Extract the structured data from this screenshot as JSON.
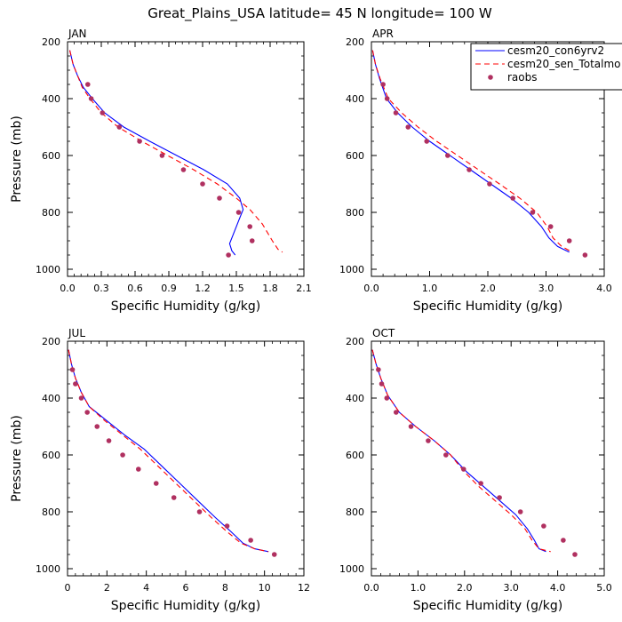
{
  "title": "Great_Plains_USA  latitude= 45 N longitude= 100 W",
  "chart_data": [
    {
      "type": "line",
      "panel": "JAN",
      "xlabel": "Specific Humidity (g/kg)",
      "ylabel": "Pressure (mb)",
      "xlim": [
        0,
        2.1
      ],
      "xticks": [
        "0.0",
        "0.3",
        "0.6",
        "0.9",
        "1.2",
        "1.5",
        "1.8",
        "2.1"
      ],
      "ylim": [
        1025,
        200
      ],
      "yticks": [
        "200",
        "400",
        "600",
        "800",
        "1000"
      ],
      "series": [
        {
          "name": "cesm20_con6yrv2",
          "kind": "line",
          "color": "#0000ff",
          "dash": "solid",
          "points": [
            [
              0.02,
              230
            ],
            [
              0.05,
              280
            ],
            [
              0.09,
              320
            ],
            [
              0.14,
              360
            ],
            [
              0.22,
              400
            ],
            [
              0.33,
              450
            ],
            [
              0.5,
              500
            ],
            [
              0.73,
              550
            ],
            [
              0.97,
              600
            ],
            [
              1.21,
              650
            ],
            [
              1.42,
              700
            ],
            [
              1.53,
              750
            ],
            [
              1.56,
              790
            ],
            [
              1.52,
              830
            ],
            [
              1.47,
              880
            ],
            [
              1.44,
              910
            ],
            [
              1.46,
              935
            ],
            [
              1.49,
              950
            ]
          ]
        },
        {
          "name": "cesm20_sen_Totalmo",
          "kind": "line",
          "color": "#ff0000",
          "dash": "6,4",
          "points": [
            [
              0.02,
              230
            ],
            [
              0.05,
              280
            ],
            [
              0.09,
              320
            ],
            [
              0.13,
              360
            ],
            [
              0.2,
              400
            ],
            [
              0.3,
              450
            ],
            [
              0.45,
              500
            ],
            [
              0.66,
              550
            ],
            [
              0.89,
              600
            ],
            [
              1.12,
              650
            ],
            [
              1.33,
              700
            ],
            [
              1.5,
              750
            ],
            [
              1.62,
              790
            ],
            [
              1.73,
              840
            ],
            [
              1.82,
              900
            ],
            [
              1.87,
              930
            ],
            [
              1.91,
              940
            ]
          ]
        },
        {
          "name": "raobs",
          "kind": "points",
          "color": "#b03060",
          "points": [
            [
              0.18,
              350
            ],
            [
              0.21,
              400
            ],
            [
              0.31,
              450
            ],
            [
              0.46,
              500
            ],
            [
              0.64,
              550
            ],
            [
              0.84,
              600
            ],
            [
              1.03,
              650
            ],
            [
              1.2,
              700
            ],
            [
              1.35,
              750
            ],
            [
              1.52,
              800
            ],
            [
              1.62,
              850
            ],
            [
              1.64,
              900
            ],
            [
              1.43,
              950
            ]
          ]
        }
      ]
    },
    {
      "type": "line",
      "panel": "APR",
      "xlabel": "Specific Humidity (g/kg)",
      "ylabel": "",
      "xlim": [
        0,
        4.0
      ],
      "xticks": [
        "0.0",
        "1.0",
        "2.0",
        "3.0",
        "4.0"
      ],
      "ylim": [
        1025,
        200
      ],
      "yticks": [
        "200",
        "400",
        "600",
        "800",
        "1000"
      ],
      "series": [
        {
          "name": "cesm20_con6yrv2",
          "kind": "line",
          "color": "#0000ff",
          "dash": "solid",
          "points": [
            [
              0.02,
              230
            ],
            [
              0.07,
              280
            ],
            [
              0.14,
              330
            ],
            [
              0.26,
              400
            ],
            [
              0.45,
              450
            ],
            [
              0.7,
              500
            ],
            [
              1.0,
              550
            ],
            [
              1.35,
              600
            ],
            [
              1.7,
              650
            ],
            [
              2.05,
              700
            ],
            [
              2.4,
              750
            ],
            [
              2.7,
              800
            ],
            [
              2.92,
              850
            ],
            [
              3.05,
              890
            ],
            [
              3.2,
              920
            ],
            [
              3.4,
              940
            ]
          ]
        },
        {
          "name": "cesm20_sen_Totalmo",
          "kind": "line",
          "color": "#ff0000",
          "dash": "6,4",
          "points": [
            [
              0.02,
              230
            ],
            [
              0.07,
              280
            ],
            [
              0.15,
              330
            ],
            [
              0.29,
              400
            ],
            [
              0.52,
              450
            ],
            [
              0.8,
              500
            ],
            [
              1.12,
              550
            ],
            [
              1.48,
              600
            ],
            [
              1.84,
              650
            ],
            [
              2.2,
              700
            ],
            [
              2.55,
              750
            ],
            [
              2.84,
              800
            ],
            [
              3.02,
              850
            ],
            [
              3.12,
              890
            ],
            [
              3.27,
              920
            ],
            [
              3.45,
              940
            ]
          ]
        },
        {
          "name": "raobs",
          "kind": "points",
          "color": "#b03060",
          "points": [
            [
              0.2,
              350
            ],
            [
              0.27,
              400
            ],
            [
              0.42,
              450
            ],
            [
              0.63,
              500
            ],
            [
              0.95,
              550
            ],
            [
              1.31,
              600
            ],
            [
              1.68,
              650
            ],
            [
              2.03,
              700
            ],
            [
              2.43,
              750
            ],
            [
              2.77,
              800
            ],
            [
              3.08,
              850
            ],
            [
              3.4,
              900
            ],
            [
              3.67,
              950
            ]
          ]
        }
      ]
    },
    {
      "type": "line",
      "panel": "JUL",
      "xlabel": "Specific Humidity (g/kg)",
      "ylabel": "Pressure (mb)",
      "xlim": [
        0,
        12
      ],
      "xticks": [
        "0",
        "2",
        "4",
        "6",
        "8",
        "10",
        "12"
      ],
      "ylim": [
        1025,
        200
      ],
      "yticks": [
        "200",
        "400",
        "600",
        "800",
        "1000"
      ],
      "series": [
        {
          "name": "cesm20_con6yrv2",
          "kind": "line",
          "color": "#0000ff",
          "dash": "solid",
          "points": [
            [
              0.05,
              230
            ],
            [
              0.2,
              280
            ],
            [
              0.4,
              330
            ],
            [
              0.7,
              380
            ],
            [
              1.1,
              430
            ],
            [
              2.0,
              480
            ],
            [
              2.9,
              530
            ],
            [
              3.9,
              580
            ],
            [
              4.8,
              640
            ],
            [
              5.7,
              700
            ],
            [
              6.6,
              760
            ],
            [
              7.5,
              820
            ],
            [
              8.3,
              870
            ],
            [
              8.9,
              910
            ],
            [
              9.5,
              930
            ],
            [
              10.2,
              940
            ]
          ]
        },
        {
          "name": "cesm20_sen_Totalmo",
          "kind": "line",
          "color": "#ff0000",
          "dash": "6,4",
          "points": [
            [
              0.05,
              230
            ],
            [
              0.2,
              280
            ],
            [
              0.4,
              330
            ],
            [
              0.7,
              380
            ],
            [
              1.1,
              430
            ],
            [
              1.9,
              480
            ],
            [
              2.8,
              530
            ],
            [
              3.7,
              580
            ],
            [
              4.6,
              640
            ],
            [
              5.5,
              700
            ],
            [
              6.4,
              760
            ],
            [
              7.3,
              820
            ],
            [
              8.1,
              870
            ],
            [
              8.8,
              910
            ],
            [
              9.5,
              930
            ],
            [
              10.2,
              940
            ]
          ]
        },
        {
          "name": "raobs",
          "kind": "points",
          "color": "#b03060",
          "points": [
            [
              0.25,
              300
            ],
            [
              0.4,
              350
            ],
            [
              0.7,
              400
            ],
            [
              1.0,
              450
            ],
            [
              1.5,
              500
            ],
            [
              2.1,
              550
            ],
            [
              2.8,
              600
            ],
            [
              3.6,
              650
            ],
            [
              4.5,
              700
            ],
            [
              5.4,
              750
            ],
            [
              6.7,
              800
            ],
            [
              8.1,
              850
            ],
            [
              9.3,
              900
            ],
            [
              10.5,
              950
            ]
          ]
        }
      ]
    },
    {
      "type": "line",
      "panel": "OCT",
      "xlabel": "Specific Humidity (g/kg)",
      "ylabel": "",
      "xlim": [
        0,
        5.0
      ],
      "xticks": [
        "0.0",
        "1.0",
        "2.0",
        "3.0",
        "4.0",
        "5.0"
      ],
      "ylim": [
        1025,
        200
      ],
      "yticks": [
        "200",
        "400",
        "600",
        "800",
        "1000"
      ],
      "series": [
        {
          "name": "cesm20_con6yrv2",
          "kind": "line",
          "color": "#0000ff",
          "dash": "solid",
          "points": [
            [
              0.02,
              230
            ],
            [
              0.1,
              280
            ],
            [
              0.2,
              330
            ],
            [
              0.35,
              390
            ],
            [
              0.6,
              450
            ],
            [
              0.95,
              500
            ],
            [
              1.35,
              550
            ],
            [
              1.7,
              600
            ],
            [
              2.05,
              660
            ],
            [
              2.4,
              710
            ],
            [
              2.75,
              760
            ],
            [
              3.1,
              810
            ],
            [
              3.35,
              860
            ],
            [
              3.5,
              900
            ],
            [
              3.6,
              930
            ],
            [
              3.75,
              940
            ]
          ]
        },
        {
          "name": "cesm20_sen_Totalmo",
          "kind": "line",
          "color": "#ff0000",
          "dash": "6,4",
          "points": [
            [
              0.02,
              230
            ],
            [
              0.1,
              280
            ],
            [
              0.2,
              330
            ],
            [
              0.35,
              390
            ],
            [
              0.6,
              450
            ],
            [
              0.95,
              500
            ],
            [
              1.35,
              550
            ],
            [
              1.7,
              600
            ],
            [
              2.0,
              660
            ],
            [
              2.3,
              710
            ],
            [
              2.65,
              760
            ],
            [
              3.0,
              810
            ],
            [
              3.3,
              860
            ],
            [
              3.45,
              900
            ],
            [
              3.6,
              930
            ],
            [
              3.85,
              940
            ]
          ]
        },
        {
          "name": "raobs",
          "kind": "points",
          "color": "#b03060",
          "points": [
            [
              0.15,
              300
            ],
            [
              0.22,
              350
            ],
            [
              0.33,
              400
            ],
            [
              0.53,
              450
            ],
            [
              0.85,
              500
            ],
            [
              1.22,
              550
            ],
            [
              1.6,
              600
            ],
            [
              1.98,
              650
            ],
            [
              2.35,
              700
            ],
            [
              2.75,
              750
            ],
            [
              3.2,
              800
            ],
            [
              3.7,
              850
            ],
            [
              4.12,
              900
            ],
            [
              4.37,
              950
            ]
          ]
        }
      ]
    }
  ]
}
